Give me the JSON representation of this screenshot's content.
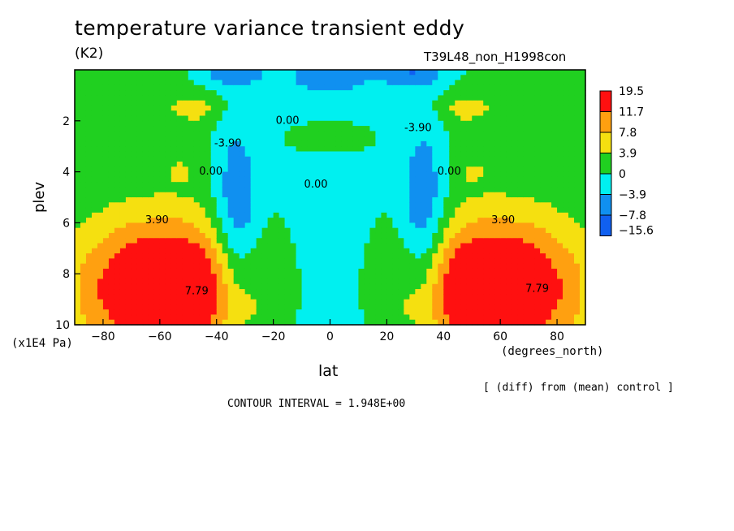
{
  "chart_data": {
    "type": "heatmap",
    "title": "temperature variance transient eddy",
    "units": "(K2)",
    "run_label": "T39L48_non_H1998con",
    "xlabel": "lat",
    "x_units": "(degrees_north)",
    "ylabel": "plev",
    "y_units": "(x1E4 Pa)",
    "xlim": [
      -90,
      90
    ],
    "ylim": [
      10,
      0
    ],
    "x_ticks": [
      -80,
      -60,
      -40,
      -20,
      0,
      20,
      40,
      60,
      80
    ],
    "x_tick_labels": [
      "-80",
      "-60",
      "-40",
      "-20",
      "0",
      "20",
      "40",
      "60",
      "80"
    ],
    "y_ticks": [
      2,
      4,
      6,
      8,
      10
    ],
    "legend_levels": [
      "19.5",
      "11.7",
      "7.8",
      "3.9",
      "0",
      "-3.9",
      "-7.8",
      "-15.6"
    ],
    "legend_colors": [
      "#ff1010",
      "#ffa010",
      "#f5e010",
      "#20d020",
      "#00f0f0",
      "#1090f0",
      "#1060f0"
    ],
    "contour_labels": [
      {
        "text": "0.00",
        "lat": -15,
        "plev": 2.0
      },
      {
        "text": "-3.90",
        "lat": -36,
        "plev": 2.9
      },
      {
        "text": "0.00",
        "lat": -42,
        "plev": 4.0
      },
      {
        "text": "0.00",
        "lat": -5,
        "plev": 4.5
      },
      {
        "text": "-3.90",
        "lat": 31,
        "plev": 2.3
      },
      {
        "text": "0.00",
        "lat": 42,
        "plev": 4.0
      },
      {
        "text": "3.90",
        "lat": -61,
        "plev": 5.9
      },
      {
        "text": "3.90",
        "lat": 61,
        "plev": 5.9
      },
      {
        "text": "7.79",
        "lat": -47,
        "plev": 8.7
      },
      {
        "text": "7.79",
        "lat": 73,
        "plev": 8.6
      }
    ],
    "blobs": [
      {
        "lat": -58,
        "plev": 8.6,
        "value": 19.5,
        "rx": 30,
        "ry": 2.7
      },
      {
        "lat": 58,
        "plev": 8.6,
        "value": 19.5,
        "rx": 30,
        "ry": 2.7
      },
      {
        "lat": -33,
        "plev": 6.0,
        "value": -9.0,
        "rx": 8,
        "ry": 3.8
      },
      {
        "lat": 33,
        "plev": 6.0,
        "value": -9.0,
        "rx": 8,
        "ry": 3.8
      },
      {
        "lat": -48,
        "plev": 1.5,
        "value": 5.0,
        "rx": 10,
        "ry": 0.6
      },
      {
        "lat": 48,
        "plev": 1.5,
        "value": 5.0,
        "rx": 10,
        "ry": 0.6
      },
      {
        "lat": -53,
        "plev": 4.0,
        "value": 4.0,
        "rx": 4,
        "ry": 0.4
      },
      {
        "lat": 50,
        "plev": 4.0,
        "value": 4.0,
        "rx": 4,
        "ry": 0.4
      }
    ],
    "grid": false,
    "legend_position": "right"
  },
  "footer": {
    "diff_note": "[ (diff) from (mean) control ]",
    "contour_interval": "CONTOUR INTERVAL = 1.948E+00"
  }
}
